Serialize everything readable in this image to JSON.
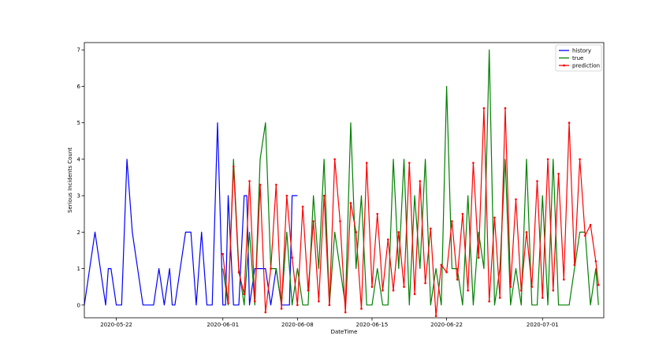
{
  "chart_data": {
    "type": "line",
    "title": "",
    "xlabel": "DateTime",
    "ylabel": "Serious Incidents Count",
    "x_range": [
      "2020-05-19T00:00",
      "2020-07-06T18:00"
    ],
    "ylim": [
      -0.35,
      7.2
    ],
    "x_ticks": [
      {
        "date": "2020-05-22",
        "label": "2020-05-22"
      },
      {
        "date": "2020-06-01",
        "label": "2020-06-01"
      },
      {
        "date": "2020-06-08",
        "label": "2020-06-08"
      },
      {
        "date": "2020-06-15",
        "label": "2020-06-15"
      },
      {
        "date": "2020-06-22",
        "label": "2020-06-22"
      },
      {
        "date": "2020-07-01",
        "label": "2020-07-01"
      }
    ],
    "y_ticks": [
      0,
      1,
      2,
      3,
      4,
      5,
      6,
      7
    ],
    "grid": false,
    "legend_position": "top-right",
    "series": [
      {
        "name": "history",
        "color": "#0000ff",
        "marker": false,
        "x": [
          "2020-05-19T00:00",
          "2020-05-19T12:00",
          "2020-05-20T00:00",
          "2020-05-20T12:00",
          "2020-05-21T00:00",
          "2020-05-21T06:00",
          "2020-05-21T12:00",
          "2020-05-22T00:00",
          "2020-05-22T12:00",
          "2020-05-23T00:00",
          "2020-05-23T12:00",
          "2020-05-24T00:00",
          "2020-05-24T12:00",
          "2020-05-25T00:00",
          "2020-05-25T06:00",
          "2020-05-25T12:00",
          "2020-05-26T00:00",
          "2020-05-26T12:00",
          "2020-05-27T00:00",
          "2020-05-27T06:00",
          "2020-05-27T12:00",
          "2020-05-28T00:00",
          "2020-05-28T12:00",
          "2020-05-29T00:00",
          "2020-05-29T12:00",
          "2020-05-30T00:00",
          "2020-05-30T06:00",
          "2020-05-30T12:00",
          "2020-05-31T00:00",
          "2020-05-31T12:00",
          "2020-06-01T00:00",
          "2020-06-01T06:00",
          "2020-06-01T12:00",
          "2020-06-02T00:00",
          "2020-06-02T12:00",
          "2020-06-03T00:00",
          "2020-06-03T06:00",
          "2020-06-03T12:00",
          "2020-06-04T00:00",
          "2020-06-04T12:00",
          "2020-06-05T00:00",
          "2020-06-05T12:00",
          "2020-06-06T00:00",
          "2020-06-06T12:00",
          "2020-06-07T00:00",
          "2020-06-07T06:00",
          "2020-06-07T12:00",
          "2020-06-08T00:00"
        ],
        "values": [
          0,
          1,
          2,
          1,
          0,
          1,
          1,
          0,
          0,
          4,
          2,
          1,
          0,
          0,
          0,
          0,
          1,
          0,
          1,
          0,
          0,
          1,
          2,
          2,
          0,
          2,
          1,
          0,
          0,
          5,
          0,
          0,
          3,
          0,
          0,
          3,
          3,
          0,
          1,
          1,
          1,
          0,
          1,
          0,
          0,
          0,
          3,
          3
        ]
      },
      {
        "name": "true",
        "color": "#008000",
        "marker": false,
        "x": [
          "2020-06-01T00:00",
          "2020-06-01T12:00",
          "2020-06-02T00:00",
          "2020-06-02T12:00",
          "2020-06-03T00:00",
          "2020-06-03T12:00",
          "2020-06-04T00:00",
          "2020-06-04T12:00",
          "2020-06-05T00:00",
          "2020-06-05T12:00",
          "2020-06-06T00:00",
          "2020-06-06T12:00",
          "2020-06-07T00:00",
          "2020-06-07T12:00",
          "2020-06-08T00:00",
          "2020-06-08T12:00",
          "2020-06-09T00:00",
          "2020-06-09T12:00",
          "2020-06-10T00:00",
          "2020-06-10T12:00",
          "2020-06-11T00:00",
          "2020-06-11T12:00",
          "2020-06-12T00:00",
          "2020-06-12T12:00",
          "2020-06-13T00:00",
          "2020-06-13T12:00",
          "2020-06-14T00:00",
          "2020-06-14T12:00",
          "2020-06-15T00:00",
          "2020-06-15T12:00",
          "2020-06-16T00:00",
          "2020-06-16T12:00",
          "2020-06-17T00:00",
          "2020-06-17T12:00",
          "2020-06-18T00:00",
          "2020-06-18T12:00",
          "2020-06-19T00:00",
          "2020-06-19T12:00",
          "2020-06-20T00:00",
          "2020-06-20T12:00",
          "2020-06-21T00:00",
          "2020-06-21T12:00",
          "2020-06-22T00:00",
          "2020-06-22T12:00",
          "2020-06-23T00:00",
          "2020-06-23T12:00",
          "2020-06-24T00:00",
          "2020-06-24T12:00",
          "2020-06-25T00:00",
          "2020-06-25T12:00",
          "2020-06-26T00:00",
          "2020-06-26T12:00",
          "2020-06-27T00:00",
          "2020-06-27T12:00",
          "2020-06-28T00:00",
          "2020-06-28T12:00",
          "2020-06-29T00:00",
          "2020-06-29T12:00",
          "2020-06-30T00:00",
          "2020-06-30T12:00",
          "2020-07-01T00:00",
          "2020-07-01T12:00",
          "2020-07-02T00:00",
          "2020-07-02T12:00",
          "2020-07-03T00:00",
          "2020-07-03T12:00",
          "2020-07-04T00:00",
          "2020-07-04T12:00",
          "2020-07-05T00:00",
          "2020-07-05T12:00",
          "2020-07-06T00:00",
          "2020-07-06T06:00"
        ],
        "values": [
          1,
          0,
          4,
          1,
          0,
          2,
          0,
          4,
          5,
          1,
          1,
          0,
          2,
          0,
          1,
          0,
          0,
          3,
          1,
          4,
          0,
          2,
          1,
          0,
          5,
          1,
          3,
          0,
          0,
          1,
          0,
          0,
          4,
          1,
          4,
          0,
          3,
          1,
          4,
          0,
          1,
          0,
          6,
          1,
          1,
          0,
          3,
          0,
          2,
          1,
          7,
          0,
          1,
          4,
          0,
          1,
          0,
          4,
          0,
          0,
          3,
          0,
          4,
          0,
          0,
          0,
          1,
          2,
          2,
          0,
          1,
          0
        ]
      },
      {
        "name": "prediction",
        "color": "#ff0000",
        "marker": true,
        "x": [
          "2020-06-01T00:00",
          "2020-06-01T12:00",
          "2020-06-02T00:00",
          "2020-06-02T12:00",
          "2020-06-03T00:00",
          "2020-06-03T12:00",
          "2020-06-04T00:00",
          "2020-06-04T12:00",
          "2020-06-05T00:00",
          "2020-06-05T12:00",
          "2020-06-06T00:00",
          "2020-06-06T12:00",
          "2020-06-07T00:00",
          "2020-06-07T12:00",
          "2020-06-08T00:00",
          "2020-06-08T12:00",
          "2020-06-09T00:00",
          "2020-06-09T12:00",
          "2020-06-10T00:00",
          "2020-06-10T12:00",
          "2020-06-11T00:00",
          "2020-06-11T12:00",
          "2020-06-12T00:00",
          "2020-06-12T12:00",
          "2020-06-13T00:00",
          "2020-06-13T12:00",
          "2020-06-14T00:00",
          "2020-06-14T12:00",
          "2020-06-15T00:00",
          "2020-06-15T12:00",
          "2020-06-16T00:00",
          "2020-06-16T12:00",
          "2020-06-17T00:00",
          "2020-06-17T12:00",
          "2020-06-18T00:00",
          "2020-06-18T12:00",
          "2020-06-19T00:00",
          "2020-06-19T12:00",
          "2020-06-20T00:00",
          "2020-06-20T12:00",
          "2020-06-21T00:00",
          "2020-06-21T12:00",
          "2020-06-22T00:00",
          "2020-06-22T12:00",
          "2020-06-23T00:00",
          "2020-06-23T12:00",
          "2020-06-24T00:00",
          "2020-06-24T12:00",
          "2020-06-25T00:00",
          "2020-06-25T12:00",
          "2020-06-26T00:00",
          "2020-06-26T12:00",
          "2020-06-27T00:00",
          "2020-06-27T12:00",
          "2020-06-28T00:00",
          "2020-06-28T12:00",
          "2020-06-29T00:00",
          "2020-06-29T12:00",
          "2020-06-30T00:00",
          "2020-06-30T12:00",
          "2020-07-01T00:00",
          "2020-07-01T12:00",
          "2020-07-02T00:00",
          "2020-07-02T12:00",
          "2020-07-03T00:00",
          "2020-07-03T12:00",
          "2020-07-04T00:00",
          "2020-07-04T12:00",
          "2020-07-05T00:00",
          "2020-07-05T12:00",
          "2020-07-06T00:00",
          "2020-07-06T06:00"
        ],
        "values": [
          1.4,
          0.05,
          3.8,
          0.9,
          0.3,
          3.4,
          0.1,
          3.3,
          -0.2,
          1.0,
          3.3,
          -0.1,
          3.0,
          1.3,
          0.0,
          2.7,
          0.4,
          2.3,
          0.1,
          3.0,
          0.0,
          4.0,
          2.3,
          -0.2,
          2.8,
          2.0,
          -0.1,
          3.9,
          0.5,
          2.5,
          0.4,
          1.8,
          0.4,
          2.0,
          0.5,
          3.9,
          0.3,
          3.4,
          0.6,
          2.1,
          -0.3,
          1.1,
          0.9,
          2.3,
          0.7,
          2.5,
          0.4,
          3.9,
          1.3,
          5.4,
          0.1,
          2.4,
          0.2,
          5.4,
          0.5,
          2.9,
          0.4,
          2.0,
          0.5,
          3.4,
          0.2,
          4.0,
          0.4,
          3.6,
          0.7,
          5.0,
          1.1,
          4.0,
          1.9,
          2.2,
          1.2,
          0.55
        ]
      }
    ]
  }
}
